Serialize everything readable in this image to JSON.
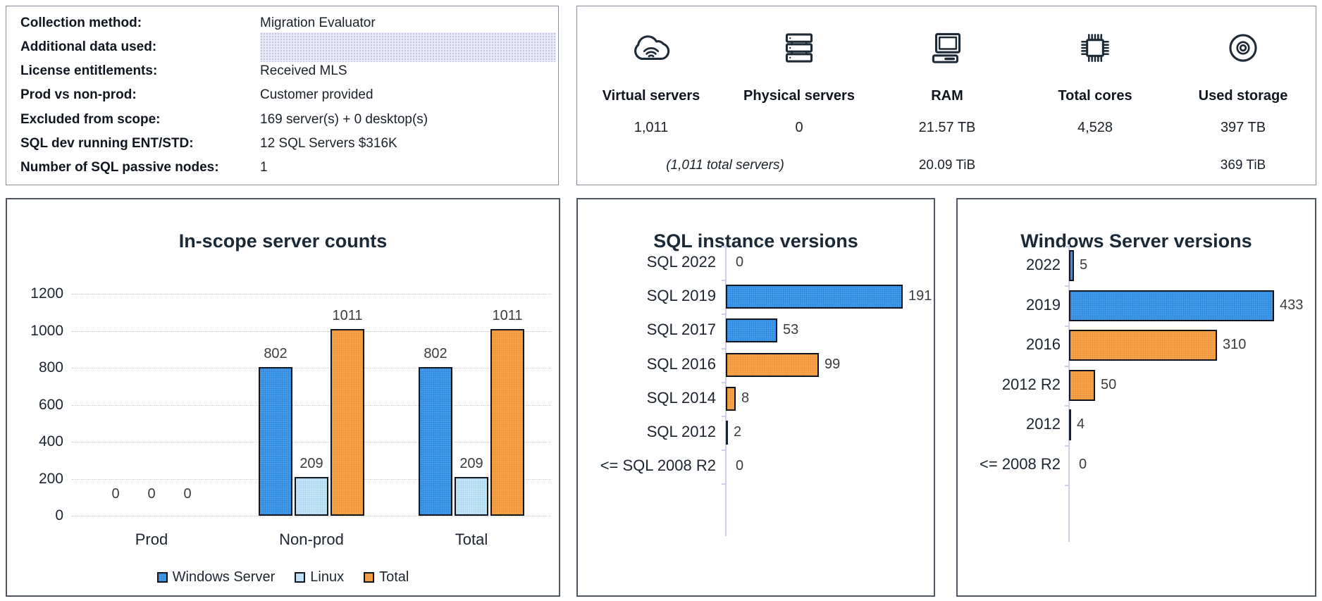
{
  "info_panel": {
    "rows": [
      {
        "label": "Collection method:",
        "value": "Migration Evaluator"
      },
      {
        "label": "Additional data used:",
        "value": "",
        "redacted": true
      },
      {
        "label": "License entitlements:",
        "value": "Received MLS"
      },
      {
        "label": "Prod vs non-prod:",
        "value": "Customer provided"
      },
      {
        "label": "Excluded from scope:",
        "value": "169 server(s) + 0 desktop(s)"
      },
      {
        "label": "SQL dev running ENT/STD:",
        "value": "12 SQL Servers $316K"
      },
      {
        "label": "Number of SQL passive nodes:",
        "value": "1"
      }
    ]
  },
  "summary_panel": {
    "metrics": [
      {
        "icon": "cloud-wifi-icon",
        "label": "Virtual servers",
        "value": "1,011"
      },
      {
        "icon": "server-rack-icon",
        "label": "Physical servers",
        "value": "0"
      },
      {
        "icon": "computer-icon",
        "label": "RAM",
        "value": "21.57 TB",
        "secondary": "20.09 TiB"
      },
      {
        "icon": "cpu-chip-icon",
        "label": "Total cores",
        "value": "4,528"
      },
      {
        "icon": "disc-icon",
        "label": "Used storage",
        "value": "397 TB",
        "secondary": "369 TiB"
      }
    ],
    "footnote": "(1,011 total servers)"
  },
  "palette": {
    "blue": "#429FF2",
    "light_blue": "#C8E7FA",
    "orange": "#F9A44A",
    "dark": "#17202B",
    "grid": "#C6C6EA",
    "bar_border": "#0F1620"
  },
  "chart_data": [
    {
      "type": "bar",
      "title": "In-scope server counts",
      "categories": [
        "Prod",
        "Non-prod",
        "Total"
      ],
      "series": [
        {
          "name": "Windows Server",
          "color": "blue",
          "values": [
            0,
            802,
            802
          ]
        },
        {
          "name": "Linux",
          "color": "light_blue",
          "values": [
            0,
            209,
            209
          ]
        },
        {
          "name": "Total",
          "color": "orange",
          "values": [
            0,
            1011,
            1011
          ]
        }
      ],
      "ylim": [
        0,
        1200
      ],
      "yticks": [
        0,
        200,
        400,
        600,
        800,
        1000,
        1200
      ],
      "grid": true,
      "legend_position": "bottom"
    },
    {
      "type": "bar-horizontal",
      "title": "SQL instance versions",
      "categories": [
        "SQL 2022",
        "SQL 2019",
        "SQL 2017",
        "SQL 2016",
        "SQL 2014",
        "SQL 2012",
        "<= SQL 2008 R2"
      ],
      "values": [
        0,
        191,
        53,
        99,
        8,
        2,
        0
      ],
      "colors": [
        "none",
        "blue",
        "blue",
        "orange",
        "orange",
        "dark",
        "none"
      ],
      "xlim": [
        0,
        220
      ],
      "grid": false
    },
    {
      "type": "bar-horizontal",
      "title": "Windows Server versions",
      "categories": [
        "2022",
        "2019",
        "2016",
        "2012 R2",
        "2012",
        "<= 2008 R2"
      ],
      "values": [
        5,
        433,
        310,
        50,
        4,
        0
      ],
      "colors": [
        "blue",
        "blue",
        "orange",
        "orange",
        "dark",
        "none"
      ],
      "xlim": [
        0,
        470
      ],
      "grid": false
    }
  ]
}
